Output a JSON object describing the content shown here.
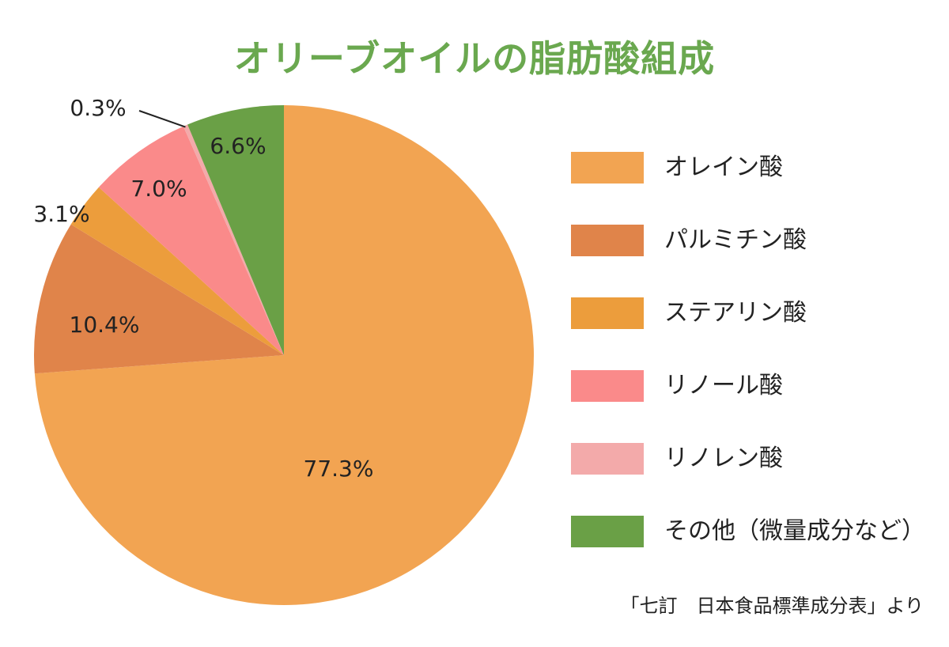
{
  "chart_data": {
    "type": "pie",
    "title": "オリーブオイルの脂肪酸組成",
    "slices": [
      {
        "name": "オレイン酸",
        "value": 77.3,
        "label": "77.3%",
        "color": "#f2a452"
      },
      {
        "name": "パルミチン酸",
        "value": 10.4,
        "label": "10.4%",
        "color": "#e0844a"
      },
      {
        "name": "ステアリン酸",
        "value": 3.1,
        "label": "3.1%",
        "color": "#ec9d3c"
      },
      {
        "name": "リノール酸",
        "value": 7.0,
        "label": "7.0%",
        "color": "#fa8a8a"
      },
      {
        "name": "リノレン酸",
        "value": 0.3,
        "label": "0.3%",
        "color": "#f3aaaa"
      },
      {
        "name": "その他（微量成分など）",
        "value": 6.6,
        "label": "6.6%",
        "color": "#6aa046"
      }
    ],
    "legend_position": "right",
    "start": "12 o'clock",
    "direction": "clockwise"
  },
  "source": "「七訂　日本食品標準成分表」より",
  "colors": {
    "title": "#6aa84f"
  }
}
